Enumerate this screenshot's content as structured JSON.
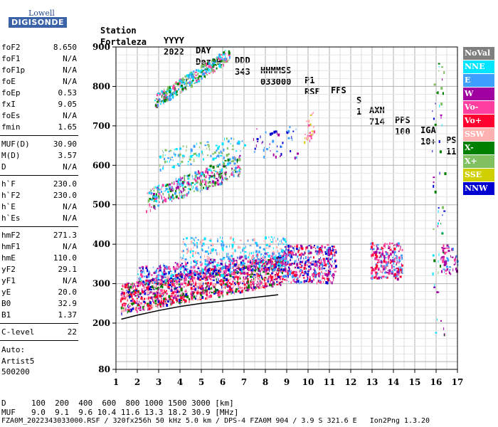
{
  "logo": {
    "top": "Lowell",
    "bottom": "DIGISONDE"
  },
  "header": {
    "labels": [
      "Station",
      "YYYY",
      "DAY",
      "DDD",
      "HHMMSS",
      "P1",
      "FFS",
      "S",
      "AXN",
      "PPS",
      "IGA",
      "PS"
    ],
    "values": [
      "Fortaleza",
      "2022",
      "Dez09",
      "343",
      "033000",
      "RSF",
      "",
      "1",
      "714",
      "100",
      "10+",
      "11"
    ]
  },
  "params": {
    "group1": [
      {
        "name": "foF2",
        "value": "8.650"
      },
      {
        "name": "foF1",
        "value": "N/A"
      },
      {
        "name": "foF1p",
        "value": "N/A"
      },
      {
        "name": "foE",
        "value": "N/A"
      },
      {
        "name": "foEp",
        "value": "0.53"
      },
      {
        "name": "fxI",
        "value": "9.05"
      },
      {
        "name": "foEs",
        "value": "N/A"
      },
      {
        "name": "fmin",
        "value": "1.65"
      }
    ],
    "group2": [
      {
        "name": "MUF(D)",
        "value": "30.90"
      },
      {
        "name": "M(D)",
        "value": "3.57"
      },
      {
        "name": "D",
        "value": "N/A"
      }
    ],
    "group3": [
      {
        "name": "h`F",
        "value": "230.0"
      },
      {
        "name": "h`F2",
        "value": "230.0"
      },
      {
        "name": "h`E",
        "value": "N/A"
      },
      {
        "name": "h`Es",
        "value": "N/A"
      }
    ],
    "group4": [
      {
        "name": "hmF2",
        "value": "271.3"
      },
      {
        "name": "hmF1",
        "value": "N/A"
      },
      {
        "name": "hmE",
        "value": "110.0"
      },
      {
        "name": "yF2",
        "value": "29.1"
      },
      {
        "name": "yF1",
        "value": "N/A"
      },
      {
        "name": "yE",
        "value": "20.0"
      },
      {
        "name": "B0",
        "value": "32.9"
      },
      {
        "name": "B1",
        "value": "1.37"
      }
    ],
    "clevel": {
      "name": "C-level",
      "value": "22"
    },
    "auto": [
      "Auto:",
      "Artist5",
      "500200"
    ]
  },
  "legend": [
    {
      "label": "NoVal",
      "color": "#7f7f7f"
    },
    {
      "label": "NNE",
      "color": "#00e5ff"
    },
    {
      "label": "E",
      "color": "#3f9fff"
    },
    {
      "label": "W",
      "color": "#a000a0"
    },
    {
      "label": "Vo-",
      "color": "#ff3fa0"
    },
    {
      "label": "Vo+",
      "color": "#ff0030"
    },
    {
      "label": "SSW",
      "color": "#ffb0b0"
    },
    {
      "label": "X-",
      "color": "#007f00"
    },
    {
      "label": "X+",
      "color": "#80c060"
    },
    {
      "label": "SSE",
      "color": "#d0d000"
    },
    {
      "label": "NNW",
      "color": "#0000d0"
    }
  ],
  "footer": {
    "d_label": "D",
    "d_values": "100  200  400  600  800 1000 1500 3000 [km]",
    "muf_label": "MUF",
    "muf_values": "9.0  9.1  9.6 10.4 11.6 13.3 18.2 30.9 [MHz]",
    "info": "FZA0M_2022343033000.RSF / 320fx256h 50 kHz 5.0 km / DPS-4 FZA0M 904 / 3.9 S 321.6 E   Ion2Png 1.3.20"
  },
  "chart_data": {
    "type": "scatter",
    "x_ticks": [
      "1",
      "2",
      "3",
      "4",
      "5",
      "6",
      "7",
      "8",
      "9",
      "10",
      "11",
      "12",
      "13",
      "14",
      "15",
      "16",
      "17"
    ],
    "y_ticks": [
      "900",
      "800",
      "700",
      "600",
      "500",
      "400",
      "300",
      "200",
      "80"
    ],
    "xlim": [
      1,
      17
    ],
    "y_tick_values": [
      900,
      800,
      700,
      600,
      500,
      400,
      300,
      200,
      80
    ],
    "grid": true,
    "trace": [
      [
        1.25,
        210
      ],
      [
        2,
        220
      ],
      [
        3,
        232
      ],
      [
        4,
        242
      ],
      [
        5,
        250
      ],
      [
        6,
        256
      ],
      [
        7,
        262
      ],
      [
        8,
        268
      ],
      [
        8.6,
        272
      ]
    ],
    "regions": [
      {
        "xr": [
          1.2,
          8.8
        ],
        "yr": [
          225,
          300
        ],
        "slope": 75,
        "n": 1400,
        "mix": [
          "#ff0030",
          "#ff3fa0",
          "#ff0030",
          "#007f00",
          "#0000d0",
          "#a000a0",
          "#ffb0b0"
        ]
      },
      {
        "xr": [
          2,
          9
        ],
        "yr": [
          300,
          345
        ],
        "slope": 40,
        "n": 500,
        "mix": [
          "#3f9fff",
          "#00e5ff",
          "#ff3fa0",
          "#a000a0",
          "#0000d0"
        ]
      },
      {
        "xr": [
          8.8,
          11.3
        ],
        "yr": [
          305,
          400
        ],
        "slope": 0,
        "n": 420,
        "mix": [
          "#0000d0",
          "#a000a0",
          "#ff0030",
          "#3f9fff",
          "#ff3fa0"
        ]
      },
      {
        "xr": [
          4,
          9
        ],
        "yr": [
          360,
          420
        ],
        "slope": 0,
        "n": 220,
        "mix": [
          "#3f9fff",
          "#00e5ff",
          "#ffb0b0"
        ]
      },
      {
        "xr": [
          2.4,
          6.8
        ],
        "yr": [
          485,
          540
        ],
        "slope": 90,
        "n": 420,
        "mix": [
          "#3f9fff",
          "#007f00",
          "#80c060",
          "#ff3fa0",
          "#00e5ff",
          "#a000a0"
        ]
      },
      {
        "xr": [
          3,
          7
        ],
        "yr": [
          590,
          640
        ],
        "slope": 40,
        "n": 120,
        "mix": [
          "#00e5ff",
          "#3f9fff",
          "#80c060"
        ]
      },
      {
        "xr": [
          2.8,
          6.3
        ],
        "yr": [
          745,
          780
        ],
        "slope": 120,
        "n": 380,
        "mix": [
          "#00e5ff",
          "#3f9fff",
          "#007f00",
          "#80c060",
          "#ff3fa0"
        ]
      },
      {
        "xr": [
          7.3,
          9.5
        ],
        "yr": [
          620,
          700
        ],
        "slope": 0,
        "n": 50,
        "mix": [
          "#0000d0",
          "#a000a0",
          "#3f9fff"
        ]
      },
      {
        "xr": [
          9.8,
          10.3
        ],
        "yr": [
          660,
          740
        ],
        "slope": 0,
        "n": 30,
        "mix": [
          "#d0d000",
          "#ff3fa0",
          "#ffb0b0"
        ]
      },
      {
        "xr": [
          12.9,
          14.4
        ],
        "yr": [
          315,
          405
        ],
        "slope": 0,
        "n": 230,
        "mix": [
          "#a000a0",
          "#ff3fa0",
          "#3f9fff",
          "#ff0030"
        ]
      },
      {
        "xr": [
          16.2,
          17
        ],
        "yr": [
          325,
          400
        ],
        "slope": 0,
        "n": 60,
        "mix": [
          "#a000a0",
          "#3f9fff",
          "#ff3fa0"
        ]
      },
      {
        "xr": [
          15.8,
          16.4
        ],
        "yr": [
          160,
          860
        ],
        "slope": 0,
        "n": 60,
        "mix": [
          "#80c060",
          "#007f00",
          "#a000a0",
          "#00e5ff",
          "#0000d0"
        ]
      }
    ]
  }
}
